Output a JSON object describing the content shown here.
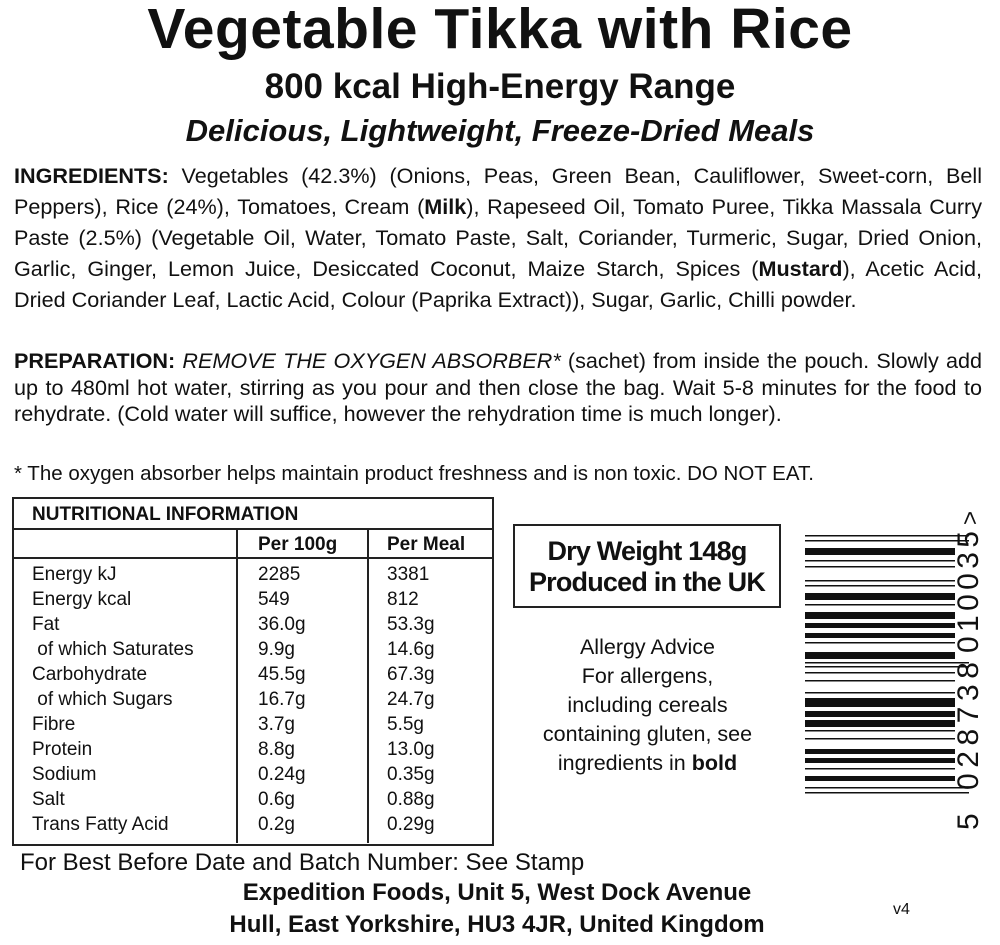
{
  "title": "Vegetable Tikka with Rice",
  "subtitle": "800 kcal High-Energy Range",
  "tagline": "Delicious, Lightweight, Freeze-Dried Meals",
  "ingredients": {
    "label": "INGREDIENTS:",
    "segments": [
      {
        "text": " Vegetables (42.3%) (Onions, Peas, Green Bean, Cauliflower, Sweet-corn, Bell Peppers), Rice (24%), Tomatoes, Cream (",
        "bold": false
      },
      {
        "text": "Milk",
        "bold": true
      },
      {
        "text": "), Rapeseed Oil, Tomato Puree, Tikka Massala Curry Paste (2.5%) (Vegetable Oil, Water, Tomato Paste, Salt, Coriander, Turmeric, Sugar,  Dried Onion, Garlic, Ginger, Lemon Juice, Desiccated Coconut, Maize Starch, Spices (",
        "bold": false
      },
      {
        "text": "Mustard",
        "bold": true
      },
      {
        "text": "), Acetic Acid, Dried Coriander Leaf, Lactic Acid, Colour (Paprika Extract)), Sugar, Garlic, Chilli powder.",
        "bold": false
      }
    ]
  },
  "preparation": {
    "label": "PREPARATION:",
    "warning": "REMOVE THE OXYGEN ABSORBER*",
    "text": " (sachet) from inside the pouch. Slowly add up to 480ml hot water, stirring as you pour and then close the bag. Wait 5-8 minutes for the food to rehydrate. (Cold water will suffice, however the rehydration time is much longer)."
  },
  "note": "* The oxygen absorber helps maintain product freshness and is non toxic.  DO NOT EAT.",
  "nutrition": {
    "heading": "NUTRITIONAL INFORMATION",
    "columns": [
      "",
      "Per 100g",
      "Per Meal"
    ],
    "rows": [
      [
        "Energy kJ",
        "2285",
        "3381"
      ],
      [
        "Energy kcal",
        "549",
        "812"
      ],
      [
        "Fat",
        "36.0g",
        "53.3g"
      ],
      [
        " of which Saturates",
        "9.9g",
        "14.6g"
      ],
      [
        "Carbohydrate",
        "45.5g",
        "67.3g"
      ],
      [
        " of which Sugars",
        "16.7g",
        "24.7g"
      ],
      [
        "Fibre",
        "3.7g",
        "5.5g"
      ],
      [
        "Protein",
        "8.8g",
        "13.0g"
      ],
      [
        "Sodium",
        "0.24g",
        "0.35g"
      ],
      [
        "Salt",
        "0.6g",
        "0.88g"
      ],
      [
        "Trans Fatty Acid",
        "0.2g",
        "0.29g"
      ]
    ]
  },
  "dry_weight": "Dry Weight 148g",
  "origin": "Produced in the UK",
  "allergy": {
    "lines": [
      "Allergy Advice",
      "For allergens,",
      "including cereals",
      "containing gluten, see"
    ],
    "last_prefix": "ingredients in ",
    "last_bold": "bold"
  },
  "barcode": {
    "first": "5",
    "left": "028738",
    "right": "010035",
    "end": ">"
  },
  "best_before": "For Best Before Date and Batch Number: See Stamp",
  "address_1": "Expedition Foods, Unit 5, West Dock Avenue",
  "address_2": "Hull, East Yorkshire, HU3 4JR, United Kingdom",
  "version": "v4"
}
